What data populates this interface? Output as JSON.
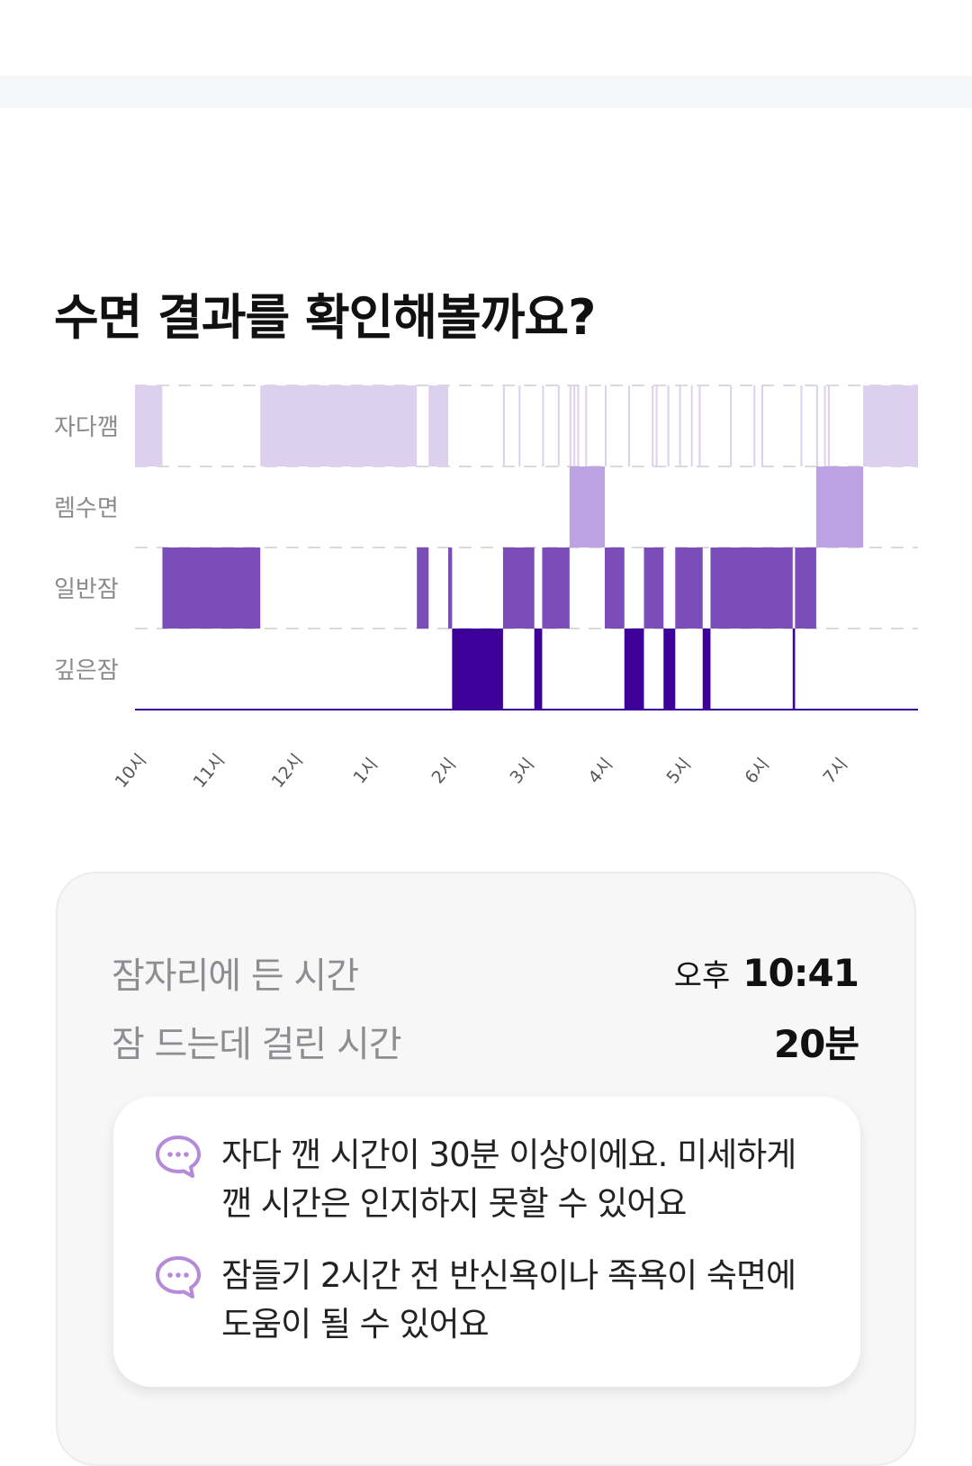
{
  "title": "수면 결과를 확인해볼까요?",
  "chart_data": {
    "type": "sleep-hypnogram",
    "stages": [
      "자다깸",
      "렘수면",
      "일반잠",
      "깊은잠"
    ],
    "x_ticks": [
      "10시",
      "11시",
      "12시",
      "1시",
      "2시",
      "3시",
      "4시",
      "5시",
      "6시",
      "7시"
    ],
    "x_range_hours": [
      0,
      10
    ],
    "colors": {
      "자다깸": "#ddd0ee",
      "렘수면": "#bca2e3",
      "일반잠": "#7b4db8",
      "깊은잠": "#3d0099"
    },
    "segments": [
      {
        "stage": "자다깸",
        "start": 0.0,
        "end": 0.35
      },
      {
        "stage": "일반잠",
        "start": 0.35,
        "end": 1.6
      },
      {
        "stage": "자다깸",
        "start": 1.6,
        "end": 3.6
      },
      {
        "stage": "일반잠",
        "start": 3.6,
        "end": 3.75
      },
      {
        "stage": "자다깸",
        "start": 3.75,
        "end": 4.0
      },
      {
        "stage": "일반잠",
        "start": 4.0,
        "end": 4.05
      },
      {
        "stage": "깊은잠",
        "start": 4.05,
        "end": 4.7
      },
      {
        "stage": "일반잠",
        "start": 4.7,
        "end": 5.1
      },
      {
        "stage": "깊은잠",
        "start": 5.1,
        "end": 5.2
      },
      {
        "stage": "일반잠",
        "start": 5.2,
        "end": 5.55
      },
      {
        "stage": "렘수면",
        "start": 5.55,
        "end": 6.0
      },
      {
        "stage": "일반잠",
        "start": 6.0,
        "end": 6.25
      },
      {
        "stage": "깊은잠",
        "start": 6.25,
        "end": 6.5
      },
      {
        "stage": "일반잠",
        "start": 6.5,
        "end": 6.75
      },
      {
        "stage": "깊은잠",
        "start": 6.75,
        "end": 6.9
      },
      {
        "stage": "일반잠",
        "start": 6.9,
        "end": 7.25
      },
      {
        "stage": "깊은잠",
        "start": 7.25,
        "end": 7.35
      },
      {
        "stage": "일반잠",
        "start": 7.35,
        "end": 8.4
      },
      {
        "stage": "깊은잠",
        "start": 8.4,
        "end": 8.43
      },
      {
        "stage": "일반잠",
        "start": 8.43,
        "end": 8.7
      },
      {
        "stage": "렘수면",
        "start": 8.7,
        "end": 9.3
      },
      {
        "stage": "자다깸",
        "start": 9.3,
        "end": 10.0
      }
    ],
    "wake_flickers": [
      4.7,
      4.9,
      5.2,
      5.4,
      5.55,
      5.6,
      5.65,
      5.75,
      6.0,
      6.3,
      6.6,
      6.65,
      6.8,
      6.95,
      7.1,
      7.2,
      7.6,
      7.9,
      8.0,
      8.5,
      8.7,
      8.8,
      8.85
    ]
  },
  "summary": {
    "bedtime_label": "잠자리에 든 시간",
    "bedtime_prefix": "오후",
    "bedtime_value": "10:41",
    "latency_label": "잠 드는데 걸린 시간",
    "latency_value": "20분"
  },
  "tips": [
    {
      "icon": "chat-bubble-icon",
      "text": "자다 깬 시간이 30분 이상이에요. 미세하게 깬 시간은 인지하지 못할 수 있어요"
    },
    {
      "icon": "chat-bubble-icon",
      "text": "잠들기 2시간 전 반신욕이나 족욕이 숙면에 도움이 될 수 있어요"
    }
  ]
}
